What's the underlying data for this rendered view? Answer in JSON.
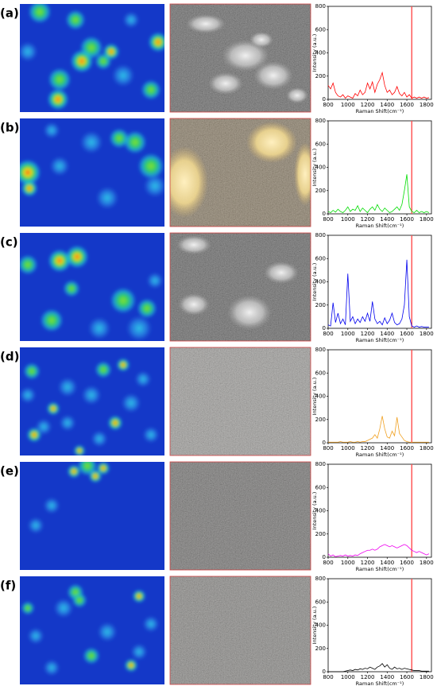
{
  "chart_data": [
    {
      "type": "line",
      "panel_label": "(a)",
      "xlabel": "Raman Shift(cm⁻¹)",
      "ylabel": "Intensity (a.u.)",
      "x": [
        800,
        825,
        850,
        875,
        900,
        925,
        950,
        975,
        1000,
        1025,
        1050,
        1075,
        1100,
        1125,
        1150,
        1175,
        1200,
        1225,
        1250,
        1275,
        1300,
        1325,
        1350,
        1375,
        1400,
        1425,
        1450,
        1475,
        1500,
        1525,
        1550,
        1575,
        1600,
        1625,
        1650,
        1675,
        1700,
        1725,
        1750,
        1775,
        1800,
        1825
      ],
      "values": [
        120,
        90,
        140,
        60,
        30,
        20,
        40,
        10,
        30,
        20,
        10,
        50,
        30,
        80,
        40,
        60,
        140,
        90,
        150,
        60,
        130,
        170,
        230,
        120,
        60,
        80,
        40,
        60,
        110,
        50,
        30,
        60,
        20,
        40,
        10,
        20,
        10,
        20,
        10,
        20,
        10,
        15
      ],
      "color": "#ff0000",
      "vline": {
        "value": 1650,
        "color": "#ff4d4d"
      },
      "xlim": [
        800,
        1850
      ],
      "xticks": [
        800,
        1000,
        1200,
        1400,
        1600,
        1800
      ],
      "ylim": [
        0,
        800
      ],
      "yticks": [
        0,
        200,
        400,
        600,
        800
      ]
    },
    {
      "type": "line",
      "panel_label": "(b)",
      "xlabel": "Raman Shift(cm⁻¹)",
      "ylabel": "Intensity (a.u.)",
      "x": [
        800,
        825,
        850,
        875,
        900,
        925,
        950,
        975,
        1000,
        1025,
        1050,
        1075,
        1100,
        1125,
        1150,
        1175,
        1200,
        1225,
        1250,
        1275,
        1300,
        1325,
        1350,
        1375,
        1400,
        1425,
        1450,
        1475,
        1500,
        1525,
        1550,
        1575,
        1600,
        1625,
        1650,
        1675,
        1700,
        1725,
        1750,
        1775,
        1800,
        1825
      ],
      "values": [
        20,
        10,
        30,
        15,
        40,
        20,
        10,
        30,
        60,
        20,
        40,
        30,
        70,
        20,
        50,
        30,
        10,
        40,
        60,
        30,
        80,
        40,
        20,
        50,
        30,
        10,
        20,
        40,
        60,
        30,
        80,
        200,
        340,
        60,
        20,
        10,
        30,
        10,
        20,
        10,
        20,
        10
      ],
      "color": "#00dd00",
      "vline": {
        "value": 1650,
        "color": "#ff4d4d"
      },
      "xlim": [
        800,
        1850
      ],
      "xticks": [
        800,
        1000,
        1200,
        1400,
        1600,
        1800
      ],
      "ylim": [
        0,
        800
      ],
      "yticks": [
        0,
        200,
        400,
        600,
        800
      ]
    },
    {
      "type": "line",
      "panel_label": "(c)",
      "xlabel": "Raman Shift(cm⁻¹)",
      "ylabel": "Intensity (a.u.)",
      "x": [
        800,
        825,
        850,
        875,
        900,
        925,
        950,
        975,
        1000,
        1025,
        1050,
        1075,
        1100,
        1125,
        1150,
        1175,
        1200,
        1225,
        1250,
        1275,
        1300,
        1325,
        1350,
        1375,
        1400,
        1425,
        1450,
        1475,
        1500,
        1525,
        1550,
        1575,
        1600,
        1625,
        1650,
        1675,
        1700,
        1725,
        1750,
        1775,
        1800,
        1825
      ],
      "values": [
        30,
        20,
        220,
        50,
        130,
        40,
        80,
        30,
        470,
        60,
        100,
        40,
        80,
        50,
        100,
        60,
        130,
        60,
        230,
        80,
        40,
        60,
        30,
        90,
        40,
        70,
        130,
        50,
        30,
        40,
        80,
        200,
        590,
        100,
        20,
        10,
        20,
        10,
        15,
        10,
        10,
        10
      ],
      "color": "#0000ee",
      "vline": {
        "value": 1650,
        "color": "#ff4d4d"
      },
      "xlim": [
        800,
        1850
      ],
      "xticks": [
        800,
        1000,
        1200,
        1400,
        1600,
        1800
      ],
      "ylim": [
        0,
        800
      ],
      "yticks": [
        0,
        200,
        400,
        600,
        800
      ]
    },
    {
      "type": "line",
      "panel_label": "(d)",
      "xlabel": "Raman Shift(cm⁻¹)",
      "ylabel": "Intensity (a.u.)",
      "x": [
        800,
        825,
        850,
        875,
        900,
        925,
        950,
        975,
        1000,
        1025,
        1050,
        1075,
        1100,
        1125,
        1150,
        1175,
        1200,
        1225,
        1250,
        1275,
        1300,
        1325,
        1350,
        1375,
        1400,
        1425,
        1450,
        1475,
        1500,
        1525,
        1550,
        1575,
        1600,
        1625,
        1650,
        1675,
        1700,
        1725,
        1750,
        1775,
        1800,
        1825
      ],
      "values": [
        5,
        5,
        5,
        5,
        5,
        10,
        5,
        5,
        5,
        10,
        5,
        5,
        10,
        5,
        10,
        10,
        20,
        30,
        40,
        70,
        40,
        120,
        230,
        120,
        50,
        40,
        100,
        60,
        220,
        80,
        50,
        20,
        10,
        5,
        5,
        5,
        5,
        5,
        5,
        5,
        5,
        5
      ],
      "color": "#f0a020",
      "vline": {
        "value": 1650,
        "color": "#ff4d4d"
      },
      "xlim": [
        800,
        1850
      ],
      "xticks": [
        800,
        1000,
        1200,
        1400,
        1600,
        1800
      ],
      "ylim": [
        0,
        800
      ],
      "yticks": [
        0,
        200,
        400,
        600,
        800
      ]
    },
    {
      "type": "line",
      "panel_label": "(e)",
      "xlabel": "Raman Shift(cm⁻¹)",
      "ylabel": "Intensity (a.u.)",
      "x": [
        800,
        825,
        850,
        875,
        900,
        925,
        950,
        975,
        1000,
        1025,
        1050,
        1075,
        1100,
        1125,
        1150,
        1175,
        1200,
        1225,
        1250,
        1275,
        1300,
        1325,
        1350,
        1375,
        1400,
        1425,
        1450,
        1475,
        1500,
        1525,
        1550,
        1575,
        1600,
        1625,
        1650,
        1675,
        1700,
        1725,
        1750,
        1775,
        1800,
        1825
      ],
      "values": [
        30,
        10,
        20,
        5,
        10,
        15,
        10,
        20,
        10,
        15,
        10,
        20,
        15,
        30,
        40,
        50,
        60,
        60,
        70,
        60,
        70,
        90,
        100,
        110,
        100,
        90,
        100,
        90,
        80,
        90,
        100,
        110,
        100,
        80,
        60,
        50,
        40,
        50,
        40,
        30,
        20,
        30
      ],
      "color": "#ee00ee",
      "vline": {
        "value": 1650,
        "color": "#ff4d4d"
      },
      "xlim": [
        800,
        1850
      ],
      "xticks": [
        800,
        1000,
        1200,
        1400,
        1600,
        1800
      ],
      "ylim": [
        0,
        800
      ],
      "yticks": [
        0,
        200,
        400,
        600,
        800
      ]
    },
    {
      "type": "line",
      "panel_label": "(f)",
      "xlabel": "Raman Shift(cm⁻¹)",
      "ylabel": "Intensity (a.u.)",
      "x": [
        800,
        825,
        850,
        875,
        900,
        925,
        950,
        975,
        1000,
        1025,
        1050,
        1075,
        1100,
        1125,
        1150,
        1175,
        1200,
        1225,
        1250,
        1275,
        1300,
        1325,
        1350,
        1375,
        1400,
        1425,
        1450,
        1475,
        1500,
        1525,
        1550,
        1575,
        1600,
        1625,
        1650,
        1675,
        1700,
        1725,
        1750,
        1775,
        1800,
        1825
      ],
      "values": [
        0,
        0,
        0,
        0,
        0,
        0,
        0,
        5,
        10,
        15,
        10,
        20,
        15,
        25,
        20,
        30,
        25,
        40,
        30,
        20,
        40,
        50,
        70,
        40,
        60,
        30,
        20,
        40,
        25,
        30,
        20,
        30,
        25,
        20,
        15,
        10,
        10,
        10,
        5,
        5,
        5,
        5
      ],
      "color": "#000000",
      "vline": {
        "value": 1650,
        "color": "#ff4d4d"
      },
      "xlim": [
        800,
        1850
      ],
      "xticks": [
        800,
        1000,
        1200,
        1400,
        1600,
        1800
      ],
      "ylim": [
        0,
        800
      ],
      "yticks": [
        0,
        200,
        400,
        600,
        800
      ]
    }
  ]
}
